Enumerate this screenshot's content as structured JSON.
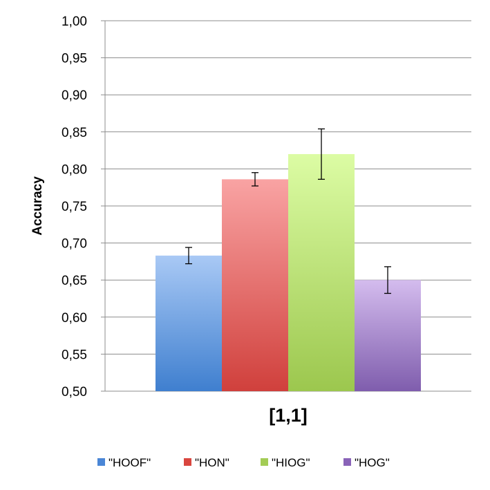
{
  "chart_data": {
    "type": "bar",
    "title": "",
    "xlabel": "",
    "ylabel": "Accuracy",
    "categories": [
      "[1,1]"
    ],
    "ylim": [
      0.5,
      1.0
    ],
    "ytick_step": 0.05,
    "ytick_labels": [
      "0,50",
      "0,55",
      "0,60",
      "0,65",
      "0,70",
      "0,75",
      "0,80",
      "0,85",
      "0,90",
      "0,95",
      "1,00"
    ],
    "grid": true,
    "legend_position": "bottom",
    "series": [
      {
        "name": "\"HOOF\"",
        "values": [
          0.683
        ],
        "error": [
          0.011
        ],
        "color_top": "#a9c9f5",
        "color_bottom": "#3f7fcf",
        "legend_color": "#4a86d6"
      },
      {
        "name": "\"HON\"",
        "values": [
          0.786
        ],
        "error": [
          0.009
        ],
        "color_top": "#f9a3a3",
        "color_bottom": "#d0403c",
        "legend_color": "#d9463f"
      },
      {
        "name": "\"HIOG\"",
        "values": [
          0.82
        ],
        "error": [
          0.034
        ],
        "color_top": "#dcfca4",
        "color_bottom": "#9cc74e",
        "legend_color": "#a3cc55"
      },
      {
        "name": "\"HOG\"",
        "values": [
          0.65
        ],
        "error": [
          0.018
        ],
        "color_top": "#d4bcee",
        "color_bottom": "#7f5dad",
        "legend_color": "#8963b8"
      }
    ]
  }
}
